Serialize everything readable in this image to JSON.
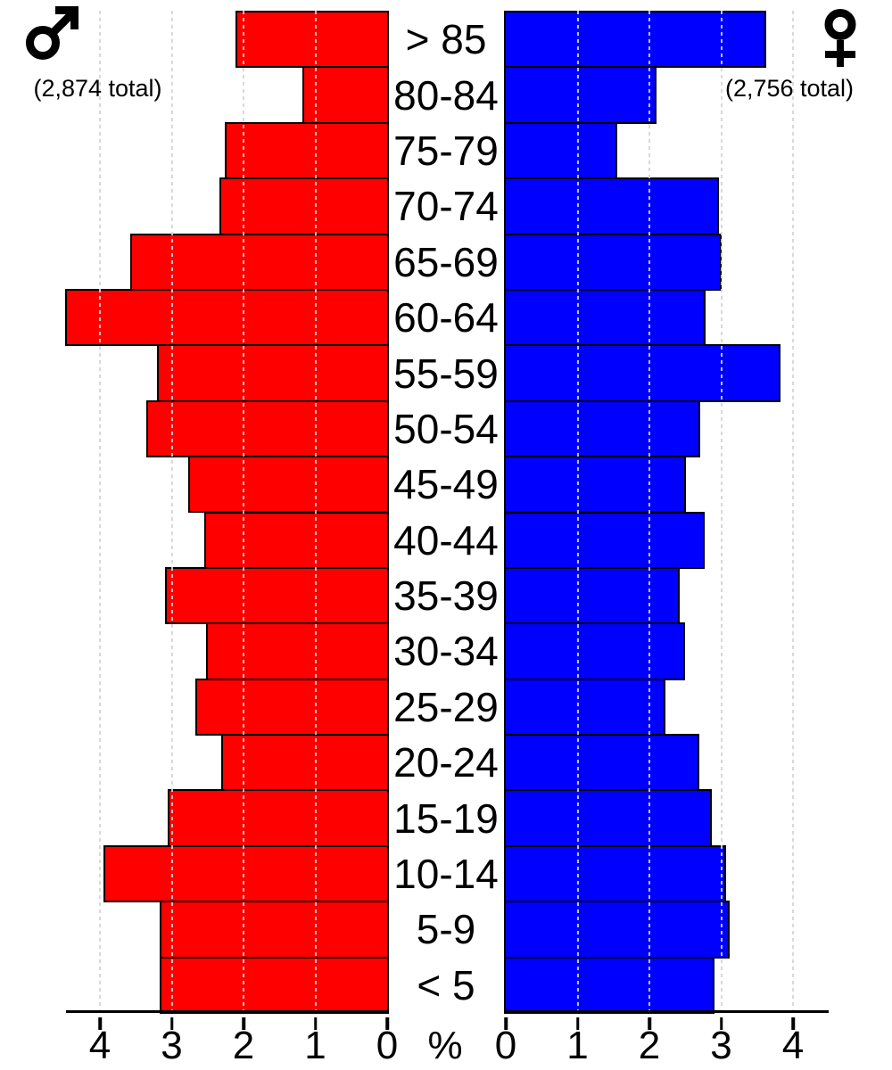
{
  "chart_data": {
    "type": "bar",
    "variant": "population_pyramid",
    "title": "",
    "categories_top_to_bottom": [
      "> 85",
      "80-84",
      "75-79",
      "70-74",
      "65-69",
      "60-64",
      "55-59",
      "50-54",
      "45-49",
      "40-44",
      "35-39",
      "30-34",
      "25-29",
      "20-24",
      "15-19",
      "10-14",
      "5-9",
      "< 5"
    ],
    "series": [
      {
        "name": "male",
        "side": "left",
        "color": "#ff0000",
        "symbol": "mars",
        "total_label": "(2,874 total)",
        "values_pct": [
          2.09,
          1.15,
          2.23,
          2.31,
          3.55,
          4.46,
          3.18,
          3.33,
          2.75,
          2.52,
          3.07,
          2.5,
          2.65,
          2.29,
          3.03,
          3.92,
          3.14,
          3.14
        ]
      },
      {
        "name": "female",
        "side": "right",
        "color": "#0000ff",
        "symbol": "venus",
        "total_label": "(2,756 total)",
        "values_pct": [
          3.6,
          2.07,
          1.53,
          2.94,
          2.98,
          2.76,
          3.8,
          2.68,
          2.48,
          2.74,
          2.4,
          2.47,
          2.2,
          2.67,
          2.84,
          3.04,
          3.09,
          2.88
        ]
      }
    ],
    "xlabel": "%",
    "axis": {
      "left_tick_labels": [
        "4",
        "3",
        "2",
        "1",
        "0"
      ],
      "right_tick_labels": [
        "0",
        "1",
        "2",
        "3",
        "4"
      ],
      "unit": "percent of total population",
      "xmax": 4.5,
      "grid_values": [
        1,
        2,
        3,
        4
      ],
      "grid_style": "dashed"
    },
    "colors": {
      "male_bar": "#ff0000",
      "female_bar": "#0000ff",
      "bar_border": "#000000",
      "grid": "#d5d5d5",
      "axis": "#000000",
      "background": "#ffffff"
    }
  }
}
